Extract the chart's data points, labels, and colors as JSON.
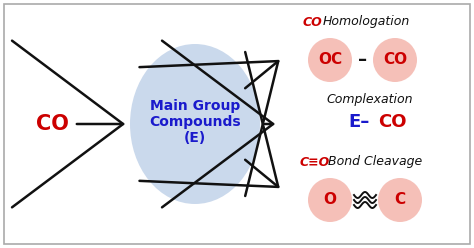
{
  "bg_color": "#ffffff",
  "border_color": "#aaaaaa",
  "ellipse_color": "#c5d5ea",
  "circle_color": "#f5c0b8",
  "co_label": "CO",
  "ellipse_text_line1": "Main Group",
  "ellipse_text_line2": "Compounds",
  "ellipse_text_line3": "(E)",
  "arrow_color": "#111111",
  "top_label_red": "CO",
  "top_label_black": "Homologation",
  "top_circle1": "OC",
  "top_circle2": "CO",
  "top_dash": "–",
  "mid_label_black": "Complexation",
  "mid_label_blue_part": "E–",
  "mid_label_red_part": "CO",
  "bot_label_red": "C≡O",
  "bot_label_black": "Bond Cleavage",
  "bot_circle1": "O",
  "bot_circle2": "C",
  "red": "#cc0000",
  "blue": "#1a1acc",
  "black": "#111111"
}
